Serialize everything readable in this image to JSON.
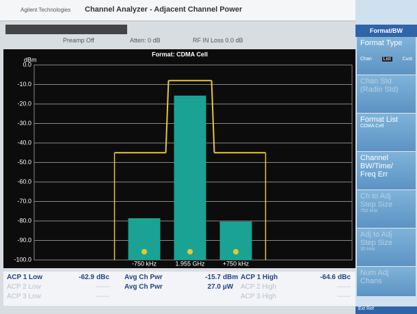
{
  "header": {
    "brand": "Agilent Technologies",
    "title": "Channel Analyzer - Adjacent Channel Power"
  },
  "status": {
    "preamp": "Preamp Off",
    "atten": "Atten: 0 dB",
    "loss": "RF IN Loss 0.0 dB"
  },
  "chart_data": {
    "type": "bar",
    "title": "Format: CDMA Cell",
    "y_label": "dBm",
    "categories": [
      "-750 kHz",
      "1.955 GHz",
      "+750 kHz"
    ],
    "values": [
      -78.6,
      -15.7,
      -80.3
    ],
    "color": "#1aa394",
    "limits": [
      -45,
      -8,
      -45
    ],
    "limit_color": "#e8c830",
    "ylim": [
      -100,
      0
    ],
    "yticks": [
      {
        "value": 0,
        "label": "0.0"
      },
      {
        "value": -10,
        "label": "-10.0"
      },
      {
        "value": -20,
        "label": "-20.0"
      },
      {
        "value": -30,
        "label": "-30.0"
      },
      {
        "value": -40,
        "label": "-40.0"
      },
      {
        "value": -50,
        "label": "-50.0"
      },
      {
        "value": -60,
        "label": "-60.0"
      },
      {
        "value": -70,
        "label": "-70.0"
      },
      {
        "value": -80,
        "label": "-80.0"
      },
      {
        "value": -90,
        "label": "-90.0"
      },
      {
        "value": -100,
        "label": "-100.0"
      }
    ],
    "grid": true
  },
  "results": {
    "low": [
      {
        "label": "ACP 1 Low",
        "value": "-62.9",
        "unit": "dBc"
      },
      {
        "label": "ACP 2 Low",
        "value": "------",
        "disabled": true
      },
      {
        "label": "ACP 3 Low",
        "value": "------",
        "disabled": true
      }
    ],
    "center": [
      {
        "label": "Avg Ch Pwr",
        "value": "-15.7",
        "unit": "dBm"
      },
      {
        "label": "Avg Ch Pwr",
        "value": "27.0",
        "unit": "µW"
      }
    ],
    "high": [
      {
        "label": "ACP 1 High",
        "value": "-64.6",
        "unit": "dBc"
      },
      {
        "label": "ACP 2 High",
        "value": "------",
        "disabled": true
      },
      {
        "label": "ACP 3 High",
        "value": "------",
        "disabled": true
      }
    ]
  },
  "softkeys": {
    "header": "Format/BW",
    "keys": [
      {
        "lines": [
          "Format Type"
        ],
        "options": [
          "Chan",
          "List",
          "Cust"
        ]
      },
      {
        "lines": [
          "Chan Std",
          "(Radio Std)"
        ],
        "disabled": true
      },
      {
        "lines": [
          "Format List"
        ],
        "sub": "CDMA Cell"
      },
      {
        "lines": [
          "Channel",
          "BW/Time/",
          "Freq Err"
        ]
      },
      {
        "lines": [
          "Ch to Adj",
          "Step Size"
        ],
        "sub": "750 kHz",
        "disabled": true
      },
      {
        "lines": [
          "Adj to Adj",
          "Step Size"
        ],
        "sub": "30 kHz",
        "disabled": true
      },
      {
        "lines": [
          "Num Adj",
          "Chans"
        ],
        "disabled": true
      }
    ],
    "footer": "Ext Ref"
  }
}
